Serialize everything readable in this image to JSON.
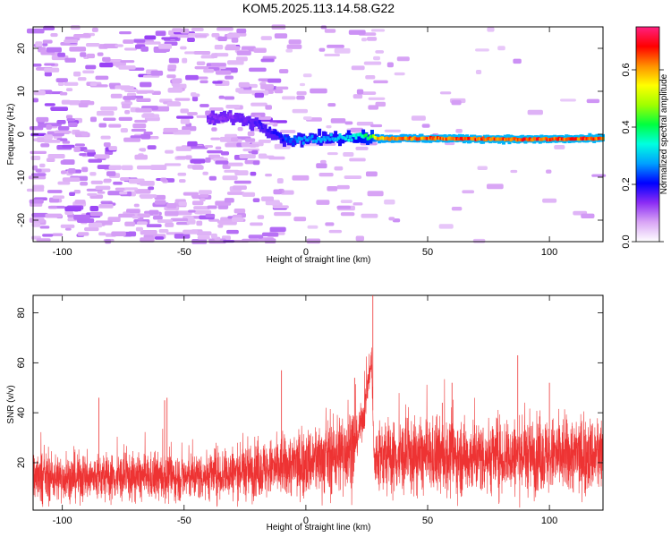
{
  "title": "KOM5.2025.113.14.58.G22",
  "chart_data": [
    {
      "type": "heatmap",
      "xlabel": "Height of straight line (km)",
      "ylabel": "Frequency (Hz)",
      "xlim": [
        -112,
        122
      ],
      "ylim": [
        -25,
        25
      ],
      "x_ticks": [
        -100,
        -50,
        0,
        50,
        100
      ],
      "y_ticks": [
        -20,
        -10,
        0,
        10,
        20
      ],
      "colorbar": {
        "label": "Normalized spectral amplitude",
        "range": [
          0,
          0.75
        ],
        "ticks": [
          0.0,
          0.2,
          0.4,
          0.6
        ],
        "colors": [
          "#ffffff",
          "#d9a5f5",
          "#8b2cf5",
          "#0000ff",
          "#00a0ff",
          "#00ffe0",
          "#00ff40",
          "#a0ff00",
          "#ffff00",
          "#ff9000",
          "#ff0000",
          "#ff2080"
        ]
      },
      "ridge": [
        {
          "x": -40,
          "y": 3.5,
          "v": 0.15
        },
        {
          "x": -30,
          "y": 4.0,
          "v": 0.15
        },
        {
          "x": -20,
          "y": 2.5,
          "v": 0.18
        },
        {
          "x": -12,
          "y": 0.0,
          "v": 0.2
        },
        {
          "x": -8,
          "y": -1.5,
          "v": 0.25
        },
        {
          "x": 0,
          "y": -1.0,
          "v": 0.3
        },
        {
          "x": 10,
          "y": -1.0,
          "v": 0.3
        },
        {
          "x": 20,
          "y": -0.5,
          "v": 0.35
        },
        {
          "x": 27,
          "y": -0.7,
          "v": 0.45
        },
        {
          "x": 30,
          "y": -1.0,
          "v": 0.65
        },
        {
          "x": 60,
          "y": -1.0,
          "v": 0.7
        },
        {
          "x": 90,
          "y": -1.2,
          "v": 0.7
        },
        {
          "x": 122,
          "y": -1.0,
          "v": 0.7
        }
      ]
    },
    {
      "type": "line",
      "xlabel": "Height of straight line (km)",
      "ylabel": "SNR (v/v)",
      "xlim": [
        -112,
        122
      ],
      "ylim": [
        1,
        87
      ],
      "x_ticks": [
        -100,
        -50,
        0,
        50,
        100
      ],
      "y_ticks": [
        20,
        40,
        60,
        80
      ],
      "color": "#ee3333",
      "baseline": [
        {
          "x": -112,
          "y": 14
        },
        {
          "x": -50,
          "y": 14
        },
        {
          "x": -10,
          "y": 18
        },
        {
          "x": 10,
          "y": 22
        },
        {
          "x": 20,
          "y": 27
        },
        {
          "x": 24,
          "y": 40
        },
        {
          "x": 26,
          "y": 55
        },
        {
          "x": 27,
          "y": 62
        },
        {
          "x": 28,
          "y": 20
        },
        {
          "x": 30,
          "y": 22
        },
        {
          "x": 122,
          "y": 23
        }
      ],
      "spikes": [
        {
          "x": 27.5,
          "y": 87
        },
        {
          "x": -10,
          "y": 57
        },
        {
          "x": 87,
          "y": 63
        },
        {
          "x": -58,
          "y": 45
        },
        {
          "x": -57,
          "y": 46
        },
        {
          "x": -85,
          "y": 46
        },
        {
          "x": 56,
          "y": 44
        },
        {
          "x": 60,
          "y": 52
        },
        {
          "x": 100,
          "y": 52
        },
        {
          "x": 20,
          "y": 54
        }
      ]
    }
  ]
}
